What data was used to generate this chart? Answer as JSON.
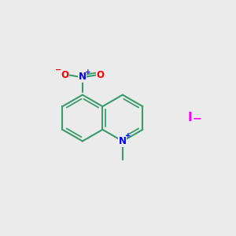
{
  "background_color": "#ebebeb",
  "bond_color": "#3a9a6e",
  "bond_width": 1.5,
  "N_color": "#0000ff",
  "O_color": "#ff0000",
  "I_color": "#ff00ff",
  "text_color": "#000000",
  "figsize": [
    3.0,
    3.0
  ],
  "dpi": 100,
  "xlim": [
    0,
    10
  ],
  "ylim": [
    0,
    10
  ]
}
